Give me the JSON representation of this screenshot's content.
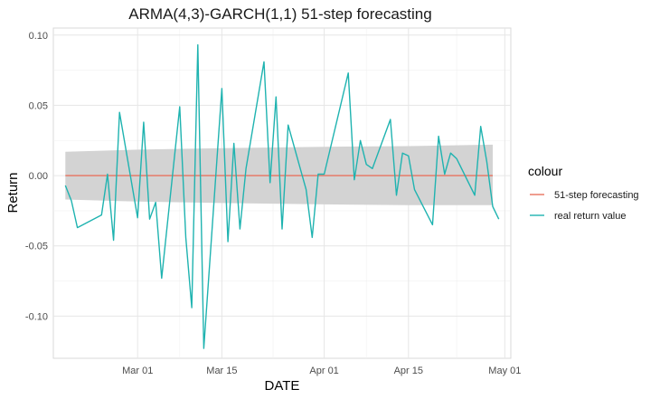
{
  "chart_data": {
    "type": "line",
    "title": "ARMA(4,3)-GARCH(1,1) 51-step forecasting",
    "xlabel": "DATE",
    "ylabel": "Return",
    "x_axis_type": "date",
    "xlim": [
      "2021-02-15",
      "2021-05-02"
    ],
    "ylim": [
      -0.13,
      0.105
    ],
    "x_ticks": [
      {
        "date": "2021-03-01",
        "label": "Mar 01"
      },
      {
        "date": "2021-03-15",
        "label": "Mar 15"
      },
      {
        "date": "2021-04-01",
        "label": "Apr 01"
      },
      {
        "date": "2021-04-15",
        "label": "Apr 15"
      },
      {
        "date": "2021-05-01",
        "label": "May 01"
      }
    ],
    "y_ticks": [
      {
        "value": 0.1,
        "label": "0.10"
      },
      {
        "value": 0.05,
        "label": "0.05"
      },
      {
        "value": 0.0,
        "label": "0.00"
      },
      {
        "value": -0.05,
        "label": "-0.05"
      },
      {
        "value": -0.1,
        "label": "-0.10"
      }
    ],
    "grid": true,
    "legend": {
      "title": "colour",
      "position": "right"
    },
    "band": {
      "color": "#d3d3d3",
      "x": [
        "2021-02-17",
        "2021-03-01",
        "2021-03-15",
        "2021-04-01",
        "2021-04-15",
        "2021-04-29"
      ],
      "upper": [
        0.017,
        0.0185,
        0.0195,
        0.0205,
        0.021,
        0.022
      ],
      "lower": [
        -0.017,
        -0.0185,
        -0.0195,
        -0.0205,
        -0.021,
        -0.021
      ]
    },
    "series": [
      {
        "name": "51-step forecasting",
        "color": "#e8735f",
        "x": [
          "2021-02-17",
          "2021-04-29"
        ],
        "y": [
          0.0,
          0.0
        ]
      },
      {
        "name": "real return value",
        "color": "#1fb3b0",
        "x": [
          "2021-02-17",
          "2021-02-18",
          "2021-02-19",
          "2021-02-23",
          "2021-02-24",
          "2021-02-25",
          "2021-02-26",
          "2021-03-01",
          "2021-03-02",
          "2021-03-03",
          "2021-03-04",
          "2021-03-05",
          "2021-03-08",
          "2021-03-09",
          "2021-03-10",
          "2021-03-11",
          "2021-03-12",
          "2021-03-15",
          "2021-03-16",
          "2021-03-17",
          "2021-03-18",
          "2021-03-19",
          "2021-03-22",
          "2021-03-23",
          "2021-03-24",
          "2021-03-25",
          "2021-03-26",
          "2021-03-29",
          "2021-03-30",
          "2021-03-31",
          "2021-04-01",
          "2021-04-05",
          "2021-04-06",
          "2021-04-07",
          "2021-04-08",
          "2021-04-09",
          "2021-04-12",
          "2021-04-13",
          "2021-04-14",
          "2021-04-15",
          "2021-04-16",
          "2021-04-19",
          "2021-04-20",
          "2021-04-21",
          "2021-04-22",
          "2021-04-23",
          "2021-04-26",
          "2021-04-27",
          "2021-04-28",
          "2021-04-29",
          "2021-04-30"
        ],
        "y": [
          -0.007,
          -0.018,
          -0.037,
          -0.028,
          0.001,
          -0.046,
          0.045,
          -0.03,
          0.038,
          -0.031,
          -0.019,
          -0.073,
          0.049,
          -0.044,
          -0.094,
          0.093,
          -0.123,
          0.062,
          -0.047,
          0.023,
          -0.038,
          0.005,
          0.081,
          -0.005,
          0.056,
          -0.038,
          0.036,
          -0.01,
          -0.044,
          0.001,
          0.001,
          0.073,
          -0.003,
          0.025,
          0.008,
          0.005,
          0.04,
          -0.014,
          0.016,
          0.014,
          -0.01,
          -0.035,
          0.028,
          0.001,
          0.016,
          0.012,
          -0.014,
          0.035,
          0.01,
          -0.022,
          -0.031
        ]
      }
    ]
  }
}
